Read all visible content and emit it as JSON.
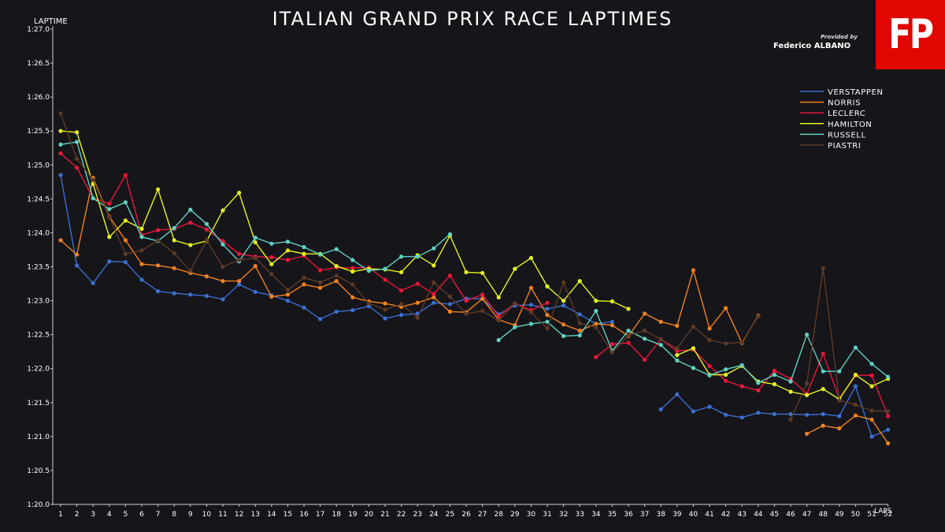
{
  "title": "ITALIAN GRAND PRIX RACE LAPTIMES",
  "logo_text": "FP",
  "provided_by": "Provided by",
  "author": "Federico ALBANO",
  "colors": {
    "background": "#16151a",
    "logo": "#e10600"
  },
  "chart_data": {
    "type": "line",
    "ylabel": "LAPTIME",
    "xlabel": "LAPS",
    "ylim": [
      80.0,
      87.0
    ],
    "xlim": [
      1,
      53
    ],
    "y_ticks": [
      80.0,
      80.5,
      81.0,
      81.5,
      82.0,
      82.5,
      83.0,
      83.5,
      84.0,
      84.5,
      85.0,
      85.5,
      86.0,
      86.5,
      87.0
    ],
    "y_tick_labels": [
      "1:20.0",
      "1:20.5",
      "1:21.0",
      "1:21.5",
      "1:22.0",
      "1:22.5",
      "1:23.0",
      "1:23.5",
      "1:24.0",
      "1:24.5",
      "1:25.0",
      "1:25.5",
      "1:26.0",
      "1:26.5",
      "1:27.0"
    ],
    "x_tick_labels": [
      "1",
      "2",
      "3",
      "4",
      "5",
      "6",
      "7",
      "8",
      "9",
      "10",
      "11",
      "12",
      "13",
      "14",
      "15",
      "16",
      "17",
      "18",
      "19",
      "20",
      "21",
      "22",
      "23",
      "24",
      "25",
      "26",
      "27",
      "28",
      "29",
      "30",
      "31",
      "32",
      "33",
      "34",
      "35",
      "36",
      "37",
      "38",
      "39",
      "40",
      "41",
      "42",
      "43",
      "44",
      "45",
      "46",
      "47",
      "48",
      "49",
      "50",
      "51",
      "52"
    ],
    "legend_position": "top-right",
    "grid": false,
    "series": [
      {
        "name": "VERSTAPPEN",
        "color": "#3b6fd1",
        "x": [
          1,
          2,
          3,
          4,
          5,
          6,
          7,
          8,
          9,
          10,
          11,
          12,
          13,
          14,
          15,
          16,
          17,
          18,
          19,
          20,
          21,
          22,
          23,
          24,
          25,
          26,
          27,
          28,
          29,
          30,
          31,
          32,
          33,
          34,
          35,
          38,
          39,
          40,
          41,
          42,
          43,
          44,
          45,
          46,
          47,
          48,
          49,
          50,
          51,
          52
        ],
        "y": [
          84.85,
          83.52,
          83.26,
          83.58,
          83.57,
          83.31,
          83.14,
          83.11,
          83.09,
          83.07,
          83.02,
          83.24,
          83.13,
          83.08,
          83.0,
          82.9,
          82.73,
          82.84,
          82.86,
          82.92,
          82.74,
          82.79,
          82.81,
          82.97,
          82.95,
          83.03,
          83.03,
          82.8,
          82.93,
          82.94,
          82.88,
          82.93,
          82.8,
          82.66,
          82.69,
          81.4,
          81.62,
          81.37,
          81.44,
          81.32,
          81.28,
          81.35,
          81.33,
          81.33,
          81.32,
          81.33,
          81.3,
          81.74,
          81.0,
          81.1
        ]
      },
      {
        "name": "NORRIS",
        "color": "#f0821e",
        "x": [
          1,
          2,
          3,
          4,
          5,
          6,
          7,
          8,
          9,
          10,
          11,
          12,
          13,
          14,
          15,
          16,
          17,
          18,
          19,
          20,
          21,
          22,
          23,
          24,
          25,
          26,
          27,
          28,
          29,
          30,
          31,
          32,
          33,
          34,
          35,
          36,
          37,
          38,
          39,
          40,
          41,
          42,
          43,
          44,
          47,
          48,
          49,
          50,
          51,
          52
        ],
        "y": [
          83.89,
          83.68,
          84.81,
          84.24,
          83.89,
          83.54,
          83.52,
          83.48,
          83.41,
          83.36,
          83.29,
          83.29,
          83.51,
          83.06,
          83.09,
          83.24,
          83.19,
          83.29,
          83.05,
          82.99,
          82.96,
          82.91,
          82.97,
          83.05,
          82.84,
          82.83,
          83.03,
          82.72,
          82.64,
          83.19,
          82.79,
          82.65,
          82.56,
          82.66,
          82.64,
          82.48,
          82.81,
          82.69,
          82.63,
          83.45,
          82.59,
          82.89,
          82.38,
          82.78,
          81.04,
          81.16,
          81.12,
          81.31,
          81.25,
          80.9
        ]
      },
      {
        "name": "LECLERC",
        "color": "#e8183a",
        "x": [
          1,
          2,
          3,
          4,
          5,
          6,
          7,
          8,
          9,
          10,
          11,
          12,
          13,
          14,
          15,
          16,
          17,
          18,
          19,
          20,
          21,
          22,
          23,
          24,
          25,
          26,
          27,
          28,
          29,
          30,
          31,
          34,
          35,
          36,
          37,
          38,
          39,
          40,
          41,
          42,
          43,
          44,
          45,
          46,
          47,
          48,
          49,
          50,
          51,
          52
        ],
        "y": [
          85.17,
          84.96,
          84.51,
          84.43,
          84.85,
          83.97,
          84.04,
          84.06,
          84.15,
          84.05,
          83.88,
          83.69,
          83.65,
          83.64,
          83.6,
          83.66,
          83.45,
          83.49,
          83.48,
          83.49,
          83.31,
          83.15,
          83.25,
          83.1,
          83.37,
          83.0,
          83.09,
          82.77,
          82.96,
          82.86,
          82.97,
          82.17,
          82.36,
          82.38,
          82.13,
          82.43,
          82.26,
          82.28,
          82.04,
          81.82,
          81.74,
          81.68,
          81.97,
          81.85,
          81.63,
          82.22,
          81.56,
          81.9,
          81.9,
          81.3
        ]
      },
      {
        "name": "HAMILTON",
        "color": "#e6f51e",
        "x": [
          1,
          2,
          3,
          4,
          5,
          6,
          7,
          8,
          9,
          10,
          11,
          12,
          13,
          14,
          15,
          16,
          17,
          18,
          19,
          20,
          21,
          22,
          23,
          24,
          25,
          26,
          27,
          28,
          29,
          30,
          31,
          32,
          33,
          34,
          35,
          36,
          39,
          40,
          41,
          42,
          43,
          44,
          45,
          46,
          47,
          48,
          49,
          50,
          51,
          52
        ],
        "y": [
          85.5,
          85.48,
          84.72,
          83.94,
          84.18,
          84.06,
          84.64,
          83.89,
          83.82,
          83.88,
          84.33,
          84.59,
          83.86,
          83.54,
          83.74,
          83.69,
          83.69,
          83.51,
          83.43,
          83.47,
          83.46,
          83.42,
          83.67,
          83.52,
          83.96,
          83.42,
          83.41,
          83.05,
          83.47,
          83.63,
          83.21,
          83.0,
          83.29,
          83.0,
          82.99,
          82.88,
          82.2,
          82.3,
          81.91,
          81.91,
          82.04,
          81.81,
          81.77,
          81.66,
          81.61,
          81.7,
          81.55,
          81.91,
          81.74,
          81.85
        ]
      },
      {
        "name": "RUSSELL",
        "color": "#5fd1c1",
        "x": [
          1,
          2,
          3,
          4,
          5,
          6,
          7,
          8,
          9,
          10,
          11,
          12,
          13,
          14,
          15,
          16,
          17,
          18,
          19,
          20,
          21,
          22,
          23,
          24,
          25,
          28,
          29,
          30,
          31,
          32,
          33,
          34,
          35,
          36,
          37,
          38,
          39,
          40,
          41,
          42,
          43,
          44,
          45,
          46,
          47,
          48,
          49,
          50,
          51,
          52
        ],
        "y": [
          85.3,
          85.34,
          84.51,
          84.35,
          84.45,
          83.94,
          83.88,
          84.07,
          84.34,
          84.13,
          83.83,
          83.58,
          83.93,
          83.84,
          83.87,
          83.79,
          83.68,
          83.76,
          83.6,
          83.44,
          83.47,
          83.65,
          83.65,
          83.77,
          83.98,
          82.42,
          82.61,
          82.66,
          82.69,
          82.48,
          82.49,
          82.85,
          82.26,
          82.56,
          82.44,
          82.35,
          82.12,
          82.01,
          81.9,
          81.99,
          82.05,
          81.79,
          81.91,
          81.81,
          82.5,
          81.96,
          81.96,
          82.31,
          82.07,
          81.88
        ]
      },
      {
        "name": "PIASTRI",
        "color": "#5e3b26",
        "x": [
          1,
          2,
          3,
          4,
          5,
          6,
          7,
          8,
          9,
          10,
          11,
          12,
          13,
          14,
          15,
          16,
          17,
          18,
          19,
          20,
          21,
          22,
          23,
          24,
          25,
          26,
          27,
          28,
          29,
          30,
          31,
          32,
          33,
          34,
          35,
          36,
          37,
          38,
          39,
          40,
          41,
          42,
          43,
          44,
          46,
          47,
          48,
          49,
          50,
          51,
          52
        ],
        "y": [
          85.76,
          85.09,
          84.78,
          84.23,
          83.69,
          83.74,
          83.89,
          83.7,
          83.44,
          83.89,
          83.5,
          83.6,
          83.63,
          83.39,
          83.16,
          83.34,
          83.27,
          83.37,
          83.24,
          82.96,
          82.87,
          82.95,
          82.75,
          83.27,
          83.06,
          82.81,
          82.85,
          82.71,
          82.96,
          82.83,
          82.59,
          83.27,
          82.67,
          82.61,
          82.24,
          82.49,
          82.56,
          82.43,
          82.3,
          82.62,
          82.42,
          82.37,
          82.39,
          82.77,
          81.25,
          81.78,
          83.48,
          81.53,
          81.47,
          81.38,
          81.37
        ]
      }
    ]
  }
}
